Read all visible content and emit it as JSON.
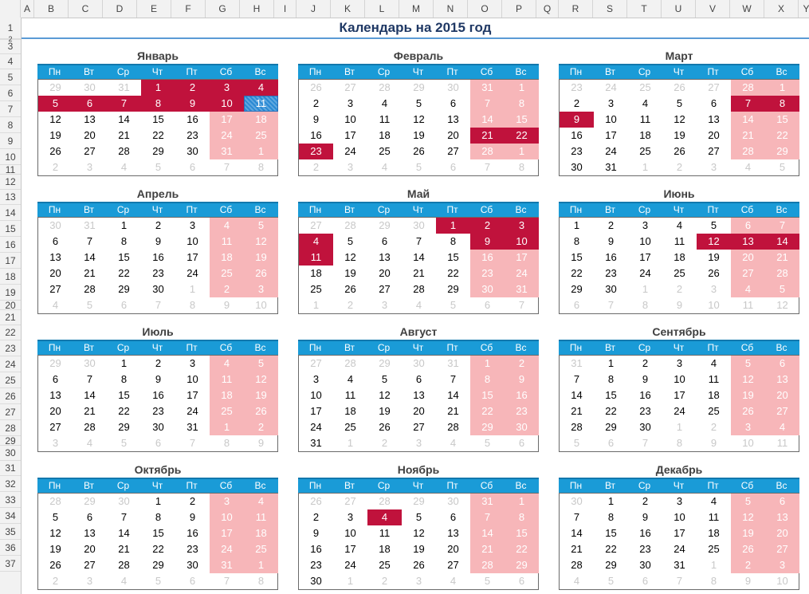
{
  "column_headers": [
    "A",
    "B",
    "C",
    "D",
    "E",
    "F",
    "G",
    "H",
    "I",
    "J",
    "K",
    "L",
    "M",
    "N",
    "O",
    "P",
    "Q",
    "R",
    "S",
    "T",
    "U",
    "V",
    "W",
    "X",
    "Y"
  ],
  "row_headers": [
    "1",
    "2",
    "3",
    "4",
    "5",
    "6",
    "7",
    "8",
    "9",
    "10",
    "11",
    "12",
    "13",
    "14",
    "15",
    "16",
    "17",
    "18",
    "19",
    "20",
    "21",
    "22",
    "23",
    "24",
    "25",
    "26",
    "27",
    "28",
    "29",
    "30",
    "31",
    "32",
    "33",
    "34",
    "35",
    "36",
    "37"
  ],
  "page_title": "Календарь на 2015 год",
  "weekdays": [
    "Пн",
    "Вт",
    "Ср",
    "Чт",
    "Пт",
    "Сб",
    "Вс"
  ],
  "colors": {
    "header_blue": "#1a9bd7",
    "weekend_pink": "#f7b6b9",
    "holiday_red": "#c0123c",
    "title_navy": "#1f3864"
  },
  "months": [
    {
      "name": "Январь",
      "weeks": [
        [
          29,
          30,
          31,
          1,
          2,
          3,
          4
        ],
        [
          5,
          6,
          7,
          8,
          9,
          10,
          11
        ],
        [
          12,
          13,
          14,
          15,
          16,
          17,
          18
        ],
        [
          19,
          20,
          21,
          22,
          23,
          24,
          25
        ],
        [
          26,
          27,
          28,
          29,
          30,
          31,
          1
        ],
        [
          2,
          3,
          4,
          5,
          6,
          7,
          8
        ]
      ],
      "holidays": [
        1,
        2,
        3,
        4,
        5,
        6,
        7,
        8,
        9,
        10
      ]
    },
    {
      "name": "Февраль",
      "weeks": [
        [
          26,
          27,
          28,
          29,
          30,
          31,
          1
        ],
        [
          2,
          3,
          4,
          5,
          6,
          7,
          8
        ],
        [
          9,
          10,
          11,
          12,
          13,
          14,
          15
        ],
        [
          16,
          17,
          18,
          19,
          20,
          21,
          22
        ],
        [
          23,
          24,
          25,
          26,
          27,
          28,
          1
        ],
        [
          2,
          3,
          4,
          5,
          6,
          7,
          8
        ]
      ],
      "holidays": [
        21,
        22,
        23
      ]
    },
    {
      "name": "Март",
      "weeks": [
        [
          23,
          24,
          25,
          26,
          27,
          28,
          1
        ],
        [
          2,
          3,
          4,
          5,
          6,
          7,
          8
        ],
        [
          9,
          10,
          11,
          12,
          13,
          14,
          15
        ],
        [
          16,
          17,
          18,
          19,
          20,
          21,
          22
        ],
        [
          23,
          24,
          25,
          26,
          27,
          28,
          29
        ],
        [
          30,
          31,
          1,
          2,
          3,
          4,
          5
        ]
      ],
      "holidays": [
        7,
        8,
        9
      ]
    },
    {
      "name": "Апрель",
      "weeks": [
        [
          30,
          31,
          1,
          2,
          3,
          4,
          5
        ],
        [
          6,
          7,
          8,
          9,
          10,
          11,
          12
        ],
        [
          13,
          14,
          15,
          16,
          17,
          18,
          19
        ],
        [
          20,
          21,
          22,
          23,
          24,
          25,
          26
        ],
        [
          27,
          28,
          29,
          30,
          1,
          2,
          3
        ],
        [
          4,
          5,
          6,
          7,
          8,
          9,
          10
        ]
      ],
      "holidays": []
    },
    {
      "name": "Май",
      "weeks": [
        [
          27,
          28,
          29,
          30,
          1,
          2,
          3
        ],
        [
          4,
          5,
          6,
          7,
          8,
          9,
          10
        ],
        [
          11,
          12,
          13,
          14,
          15,
          16,
          17
        ],
        [
          18,
          19,
          20,
          21,
          22,
          23,
          24
        ],
        [
          25,
          26,
          27,
          28,
          29,
          30,
          31
        ],
        [
          1,
          2,
          3,
          4,
          5,
          6,
          7
        ]
      ],
      "holidays": [
        1,
        2,
        3,
        4,
        9,
        10,
        11
      ]
    },
    {
      "name": "Июнь",
      "weeks": [
        [
          1,
          2,
          3,
          4,
          5,
          6,
          7
        ],
        [
          8,
          9,
          10,
          11,
          12,
          13,
          14
        ],
        [
          15,
          16,
          17,
          18,
          19,
          20,
          21
        ],
        [
          22,
          23,
          24,
          25,
          26,
          27,
          28
        ],
        [
          29,
          30,
          1,
          2,
          3,
          4,
          5
        ],
        [
          6,
          7,
          8,
          9,
          10,
          11,
          12
        ]
      ],
      "holidays": [
        12,
        13,
        14
      ]
    },
    {
      "name": "Июль",
      "weeks": [
        [
          29,
          30,
          1,
          2,
          3,
          4,
          5
        ],
        [
          6,
          7,
          8,
          9,
          10,
          11,
          12
        ],
        [
          13,
          14,
          15,
          16,
          17,
          18,
          19
        ],
        [
          20,
          21,
          22,
          23,
          24,
          25,
          26
        ],
        [
          27,
          28,
          29,
          30,
          31,
          1,
          2
        ],
        [
          3,
          4,
          5,
          6,
          7,
          8,
          9
        ]
      ],
      "holidays": []
    },
    {
      "name": "Август",
      "weeks": [
        [
          27,
          28,
          29,
          30,
          31,
          1,
          2
        ],
        [
          3,
          4,
          5,
          6,
          7,
          8,
          9
        ],
        [
          10,
          11,
          12,
          13,
          14,
          15,
          16
        ],
        [
          17,
          18,
          19,
          20,
          21,
          22,
          23
        ],
        [
          24,
          25,
          26,
          27,
          28,
          29,
          30
        ],
        [
          31,
          1,
          2,
          3,
          4,
          5,
          6
        ]
      ],
      "holidays": []
    },
    {
      "name": "Сентябрь",
      "weeks": [
        [
          31,
          1,
          2,
          3,
          4,
          5,
          6
        ],
        [
          7,
          8,
          9,
          10,
          11,
          12,
          13
        ],
        [
          14,
          15,
          16,
          17,
          18,
          19,
          20
        ],
        [
          21,
          22,
          23,
          24,
          25,
          26,
          27
        ],
        [
          28,
          29,
          30,
          1,
          2,
          3,
          4
        ],
        [
          5,
          6,
          7,
          8,
          9,
          10,
          11
        ]
      ],
      "holidays": []
    },
    {
      "name": "Октябрь",
      "weeks": [
        [
          28,
          29,
          30,
          1,
          2,
          3,
          4
        ],
        [
          5,
          6,
          7,
          8,
          9,
          10,
          11
        ],
        [
          12,
          13,
          14,
          15,
          16,
          17,
          18
        ],
        [
          19,
          20,
          21,
          22,
          23,
          24,
          25
        ],
        [
          26,
          27,
          28,
          29,
          30,
          31,
          1
        ],
        [
          2,
          3,
          4,
          5,
          6,
          7,
          8
        ]
      ],
      "holidays": []
    },
    {
      "name": "Ноябрь",
      "weeks": [
        [
          26,
          27,
          28,
          29,
          30,
          31,
          1
        ],
        [
          2,
          3,
          4,
          5,
          6,
          7,
          8
        ],
        [
          9,
          10,
          11,
          12,
          13,
          14,
          15
        ],
        [
          16,
          17,
          18,
          19,
          20,
          21,
          22
        ],
        [
          23,
          24,
          25,
          26,
          27,
          28,
          29
        ],
        [
          30,
          1,
          2,
          3,
          4,
          5,
          6
        ]
      ],
      "holidays": [
        4
      ]
    },
    {
      "name": "Декабрь",
      "weeks": [
        [
          30,
          1,
          2,
          3,
          4,
          5,
          6
        ],
        [
          7,
          8,
          9,
          10,
          11,
          12,
          13
        ],
        [
          14,
          15,
          16,
          17,
          18,
          19,
          20
        ],
        [
          21,
          22,
          23,
          24,
          25,
          26,
          27
        ],
        [
          28,
          29,
          30,
          31,
          1,
          2,
          3
        ],
        [
          4,
          5,
          6,
          7,
          8,
          9,
          10
        ]
      ],
      "holidays": []
    }
  ],
  "selected_cell": {
    "month": "Январь",
    "day": 11
  }
}
